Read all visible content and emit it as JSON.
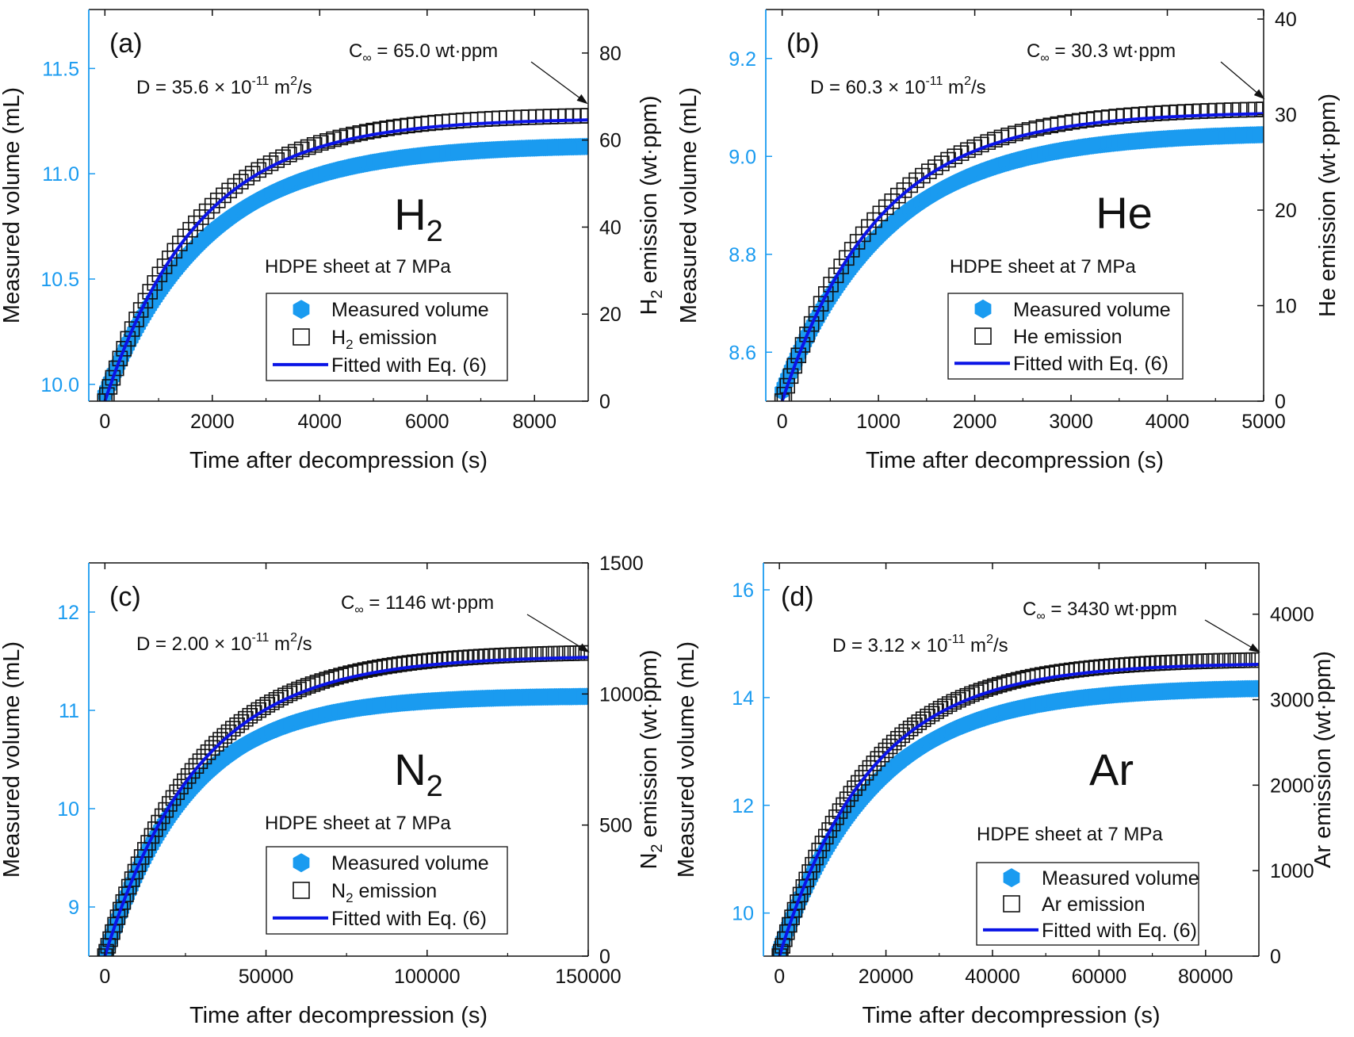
{
  "figure": {
    "left_axis_color": "#1a9bf0",
    "right_axis_color": "#111111",
    "vol_marker_color": "#1a9bf0",
    "emission_marker_color": "#111111",
    "fit_line_color": "#0a14e6"
  },
  "chart_data": [
    {
      "type": "scatter",
      "panel_label": "(a)",
      "gas_label": "H",
      "gas_sub": "2",
      "condition": "HDPE sheet at 7 MPa",
      "diffusion_text": "D = 35.6 × 10",
      "diffusion_exp": "-11",
      "diffusion_unit": " m",
      "diffusion_unit_exp": "2",
      "diffusion_unit_tail": "/s",
      "c_inf_prefix": "C",
      "c_inf_sub": "∞",
      "c_inf_text": " = 65.0 wt·ppm",
      "xlabel": "Time after decompression (s)",
      "ylabel_left": "Measured volume (mL)",
      "ylabel_right_pre": "H",
      "ylabel_right_sub": "2",
      "ylabel_right_post": " emission (wt·ppm)",
      "xlim": [
        -300,
        9000
      ],
      "ylim_left": [
        9.92,
        11.78
      ],
      "ylim_right": [
        0,
        90
      ],
      "xticks": [
        0,
        2000,
        4000,
        6000,
        8000
      ],
      "xtick_labels": [
        "0",
        "2000",
        "4000",
        "6000",
        "8000"
      ],
      "yticks_left": [
        10.0,
        10.5,
        11.0,
        11.5
      ],
      "ytick_labels_left": [
        "10.0",
        "10.5",
        "11.0",
        "11.5"
      ],
      "yticks_right": [
        0,
        20,
        40,
        60,
        80
      ],
      "ytick_labels_right": [
        "0",
        "20",
        "40",
        "60",
        "80"
      ],
      "legend": {
        "vol": "Measured volume",
        "em_pre": "H",
        "em_sub": "2",
        "em_post": " emission",
        "fit": "Fitted with Eq. (6)"
      },
      "volume_series": {
        "name": "Measured volume",
        "t_max": 9000,
        "v0": 9.95,
        "v_inf": 11.14,
        "tau": 1900
      },
      "emission_series": {
        "name": "H2 emission",
        "t_max": 9000,
        "c_inf": 65.0,
        "tau": 1750,
        "points": 80
      },
      "fit_series": {
        "name": "Fitted with Eq. (6)",
        "c_inf": 65.0,
        "tau": 1750
      }
    },
    {
      "type": "scatter",
      "panel_label": "(b)",
      "gas_label": "He",
      "gas_sub": "",
      "condition": "HDPE sheet at 7 MPa",
      "diffusion_text": "D = 60.3 × 10",
      "diffusion_exp": "-11",
      "diffusion_unit": " m",
      "diffusion_unit_exp": "2",
      "diffusion_unit_tail": "/s",
      "c_inf_prefix": "C",
      "c_inf_sub": "∞",
      "c_inf_text": " = 30.3 wt·ppm",
      "xlabel": "Time after decompression (s)",
      "ylabel_left": "Measured volume (mL)",
      "ylabel_right_pre": "He",
      "ylabel_right_sub": "",
      "ylabel_right_post": " emission (wt·ppm)",
      "xlim": [
        -170,
        5000
      ],
      "ylim_left": [
        8.5,
        9.3
      ],
      "ylim_right": [
        0,
        41
      ],
      "xticks": [
        0,
        1000,
        2000,
        3000,
        4000,
        5000
      ],
      "xtick_labels": [
        "0",
        "1000",
        "2000",
        "3000",
        "4000",
        "5000"
      ],
      "yticks_left": [
        8.6,
        8.8,
        9.0,
        9.2
      ],
      "ytick_labels_left": [
        "8.6",
        "8.8",
        "9.0",
        "9.2"
      ],
      "yticks_right": [
        0,
        10,
        20,
        30,
        40
      ],
      "ytick_labels_right": [
        "0",
        "10",
        "20",
        "30",
        "40"
      ],
      "legend": {
        "vol": "Measured volume",
        "em_pre": "He",
        "em_sub": "",
        "em_post": " emission",
        "fit": "Fitted with Eq. (6)"
      },
      "volume_series": {
        "name": "Measured volume",
        "t_max": 5000,
        "v0": 8.52,
        "v_inf": 9.05,
        "tau": 1100
      },
      "emission_series": {
        "name": "He emission",
        "t_max": 5000,
        "c_inf": 30.3,
        "tau": 1000,
        "points": 75
      },
      "fit_series": {
        "name": "Fitted with Eq. (6)",
        "c_inf": 30.3,
        "tau": 1000
      }
    },
    {
      "type": "scatter",
      "panel_label": "(c)",
      "gas_label": "N",
      "gas_sub": "2",
      "condition": "HDPE sheet at 7 MPa",
      "diffusion_text": "D = 2.00 × 10",
      "diffusion_exp": "-11",
      "diffusion_unit": " m",
      "diffusion_unit_exp": "2",
      "diffusion_unit_tail": "/s",
      "c_inf_prefix": "C",
      "c_inf_sub": "∞",
      "c_inf_text": " = 1146 wt·ppm",
      "xlabel": "Time after decompression (s)",
      "ylabel_left": "Measured volume (mL)",
      "ylabel_right_pre": "N",
      "ylabel_right_sub": "2",
      "ylabel_right_post": " emission (wt·ppm)",
      "xlim": [
        -5000,
        150000
      ],
      "ylim_left": [
        8.5,
        12.5
      ],
      "ylim_right": [
        0,
        1500
      ],
      "xticks": [
        0,
        50000,
        100000,
        150000
      ],
      "xtick_labels": [
        "0",
        "50000",
        "100000",
        "150000"
      ],
      "yticks_left": [
        9,
        10,
        11,
        12
      ],
      "ytick_labels_left": [
        "9",
        "10",
        "11",
        "12"
      ],
      "yticks_right": [
        0,
        500,
        1000,
        1500
      ],
      "ytick_labels_right": [
        "0",
        "500",
        "1000",
        "1500"
      ],
      "legend": {
        "vol": "Measured volume",
        "em_pre": "N",
        "em_sub": "2",
        "em_post": " emission",
        "fit": "Fitted with Eq. (6)"
      },
      "volume_series": {
        "name": "Measured volume",
        "t_max": 150000,
        "v0": 8.5,
        "v_inf": 11.15,
        "tau": 26000
      },
      "emission_series": {
        "name": "N2 emission",
        "t_max": 150000,
        "c_inf": 1146,
        "tau": 29000,
        "points": 110
      },
      "fit_series": {
        "name": "Fitted with Eq. (6)",
        "c_inf": 1146,
        "tau": 29000
      }
    },
    {
      "type": "scatter",
      "panel_label": "(d)",
      "gas_label": "Ar",
      "gas_sub": "",
      "condition": "HDPE sheet at 7 MPa",
      "diffusion_text": "D = 3.12 × 10",
      "diffusion_exp": "-11",
      "diffusion_unit": " m",
      "diffusion_unit_exp": "2",
      "diffusion_unit_tail": "/s",
      "c_inf_prefix": "C",
      "c_inf_sub": "∞",
      "c_inf_text": " = 3430 wt·ppm",
      "xlabel": "Time after decompression (s)",
      "ylabel_left": "Measured volume (mL)",
      "ylabel_right_pre": "Ar",
      "ylabel_right_sub": "",
      "ylabel_right_post": " emission (wt·ppm)",
      "xlim": [
        -3000,
        90000
      ],
      "ylim_left": [
        9.2,
        16.5
      ],
      "ylim_right": [
        0,
        4600
      ],
      "xticks": [
        0,
        20000,
        40000,
        60000,
        80000
      ],
      "xtick_labels": [
        "0",
        "20000",
        "40000",
        "60000",
        "80000"
      ],
      "yticks_left": [
        10,
        12,
        14,
        16
      ],
      "ytick_labels_left": [
        "10",
        "12",
        "14",
        "16"
      ],
      "yticks_right": [
        0,
        1000,
        2000,
        3000,
        4000
      ],
      "ytick_labels_right": [
        "0",
        "1000",
        "2000",
        "3000",
        "4000"
      ],
      "legend": {
        "vol": "Measured volume",
        "em_pre": "Ar",
        "em_sub": "",
        "em_post": " emission",
        "fit": "Fitted with Eq. (6)"
      },
      "volume_series": {
        "name": "Measured volume",
        "t_max": 90000,
        "v0": 9.3,
        "v_inf": 14.2,
        "tau": 18000
      },
      "emission_series": {
        "name": "Ar emission",
        "t_max": 90000,
        "c_inf": 3430,
        "tau": 17000,
        "points": 110
      },
      "fit_series": {
        "name": "Fitted with Eq. (6)",
        "c_inf": 3430,
        "tau": 17000
      }
    }
  ]
}
